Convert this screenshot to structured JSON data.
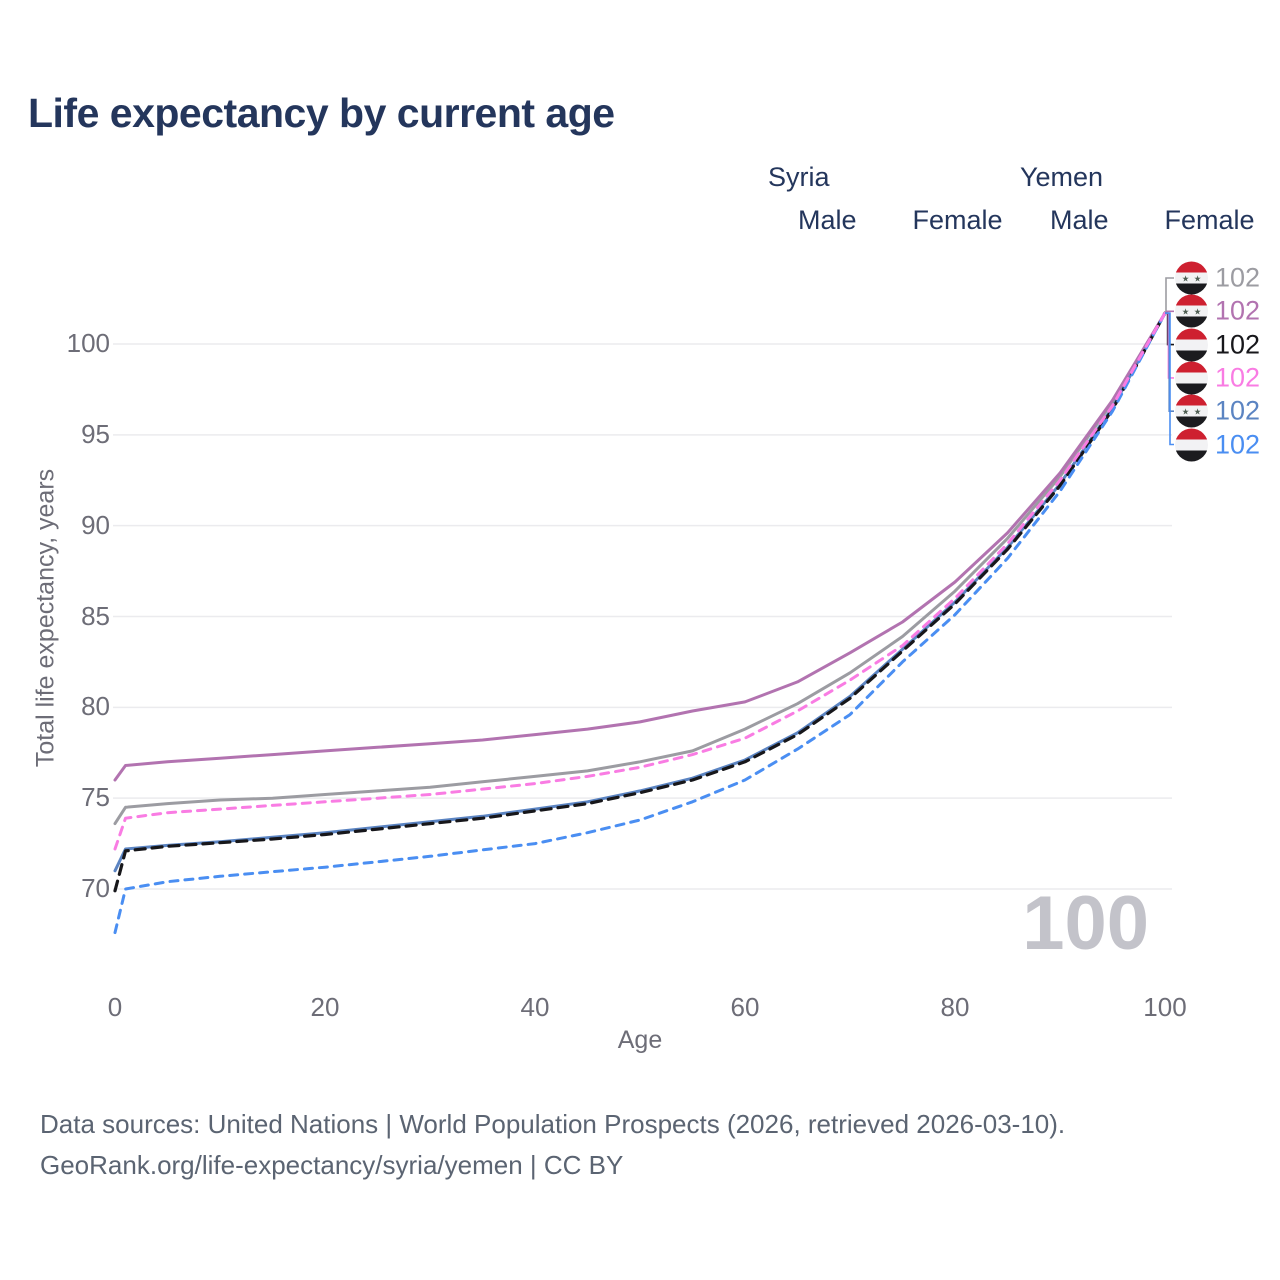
{
  "title": "Life expectancy by current age",
  "watermark": "100",
  "legend": {
    "syria": {
      "label": "Syria",
      "male": "Male",
      "female": "Female"
    },
    "yemen": {
      "label": "Yemen",
      "male": "Male",
      "female": "Female"
    }
  },
  "axes": {
    "x": {
      "title": "Age",
      "ticks": [
        0,
        20,
        40,
        60,
        80,
        100
      ]
    },
    "y": {
      "title": "Total life expectancy, years",
      "ticks": [
        70,
        75,
        80,
        85,
        90,
        95,
        100
      ]
    }
  },
  "colors": {
    "title": "#24365c",
    "tick": "#6d6d77",
    "grid": "#ebebee",
    "watermark": "#c3c3ca",
    "footer": "#5b6472",
    "syria_male": "#5b84c2",
    "syria_female": "#b273b0",
    "syria_total": "#9c9ca2",
    "yemen_male": "#4a8ef2",
    "yemen_female": "#f97ce3",
    "yemen_total": "#17171b",
    "flag_red": "#ce2030",
    "flag_white": "#f2f2f4",
    "flag_black": "#1b1b1f",
    "flag_star": "#4e5d52"
  },
  "chart_data": {
    "type": "line",
    "title": "Life expectancy by current age",
    "xlabel": "Age",
    "ylabel": "Total life expectancy, years",
    "xlim": [
      0,
      100
    ],
    "ylim": [
      66,
      102
    ],
    "grid": true,
    "legend_position": "top-right",
    "x": [
      0,
      1,
      5,
      10,
      15,
      20,
      25,
      30,
      35,
      40,
      45,
      50,
      55,
      60,
      65,
      70,
      75,
      80,
      85,
      90,
      95,
      100
    ],
    "series": [
      {
        "key": "syria_total",
        "name": "Syria",
        "sex": "Total",
        "flag": "syria",
        "style": "solid",
        "color_key": "syria_total",
        "end_label": "102",
        "values": [
          73.6,
          74.5,
          74.7,
          74.9,
          75.0,
          75.2,
          75.4,
          75.6,
          75.9,
          76.2,
          76.5,
          77.0,
          77.6,
          78.8,
          80.2,
          81.9,
          83.9,
          86.4,
          89.3,
          92.7,
          96.8,
          101.7
        ]
      },
      {
        "key": "syria_male",
        "name": "Syria Male",
        "sex": "Male",
        "flag": "syria",
        "style": "solid",
        "color_key": "syria_male",
        "end_label": "102",
        "values": [
          71.0,
          72.2,
          72.4,
          72.6,
          72.85,
          73.1,
          73.4,
          73.7,
          74.0,
          74.4,
          74.8,
          75.4,
          76.1,
          77.1,
          78.6,
          80.6,
          83.2,
          85.8,
          88.8,
          92.3,
          96.5,
          101.7
        ]
      },
      {
        "key": "syria_female",
        "name": "Syria Female",
        "sex": "Female",
        "flag": "syria",
        "style": "solid",
        "color_key": "syria_female",
        "end_label": "102",
        "values": [
          76.0,
          76.8,
          77.0,
          77.2,
          77.4,
          77.6,
          77.8,
          78.0,
          78.2,
          78.5,
          78.8,
          79.2,
          79.8,
          80.3,
          81.4,
          83.0,
          84.7,
          86.9,
          89.6,
          92.9,
          96.9,
          101.7
        ]
      },
      {
        "key": "yemen_total",
        "name": "Yemen",
        "sex": "Total",
        "flag": "yemen",
        "style": "dashed",
        "color_key": "yemen_total",
        "end_label": "102",
        "values": [
          69.9,
          72.1,
          72.35,
          72.55,
          72.75,
          73.0,
          73.3,
          73.6,
          73.9,
          74.3,
          74.7,
          75.3,
          76.0,
          77.0,
          78.5,
          80.5,
          83.1,
          85.7,
          88.7,
          92.2,
          96.4,
          101.7
        ]
      },
      {
        "key": "yemen_male",
        "name": "Yemen Male",
        "sex": "Male",
        "flag": "yemen",
        "style": "dashed",
        "color_key": "yemen_male",
        "end_label": "102",
        "values": [
          67.6,
          70.0,
          70.4,
          70.7,
          70.95,
          71.2,
          71.5,
          71.8,
          72.15,
          72.5,
          73.1,
          73.8,
          74.8,
          76.0,
          77.7,
          79.6,
          82.5,
          85.1,
          88.2,
          91.9,
          96.3,
          101.7
        ]
      },
      {
        "key": "yemen_female",
        "name": "Yemen Female",
        "sex": "Female",
        "flag": "yemen",
        "style": "dashed",
        "color_key": "yemen_female",
        "end_label": "102",
        "values": [
          72.2,
          73.9,
          74.2,
          74.4,
          74.6,
          74.8,
          75.0,
          75.2,
          75.5,
          75.8,
          76.2,
          76.7,
          77.4,
          78.3,
          79.8,
          81.5,
          83.4,
          86.0,
          89.0,
          92.5,
          96.6,
          101.7
        ]
      }
    ],
    "end_label_order": [
      "syria_total",
      "syria_female",
      "yemen_total",
      "yemen_female",
      "syria_male",
      "yemen_male"
    ]
  },
  "footer": {
    "line1": "Data sources: United Nations | World Population Prospects (2026, retrieved 2026-03-10).",
    "line2": "GeoRank.org/life-expectancy/syria/yemen | CC BY"
  }
}
